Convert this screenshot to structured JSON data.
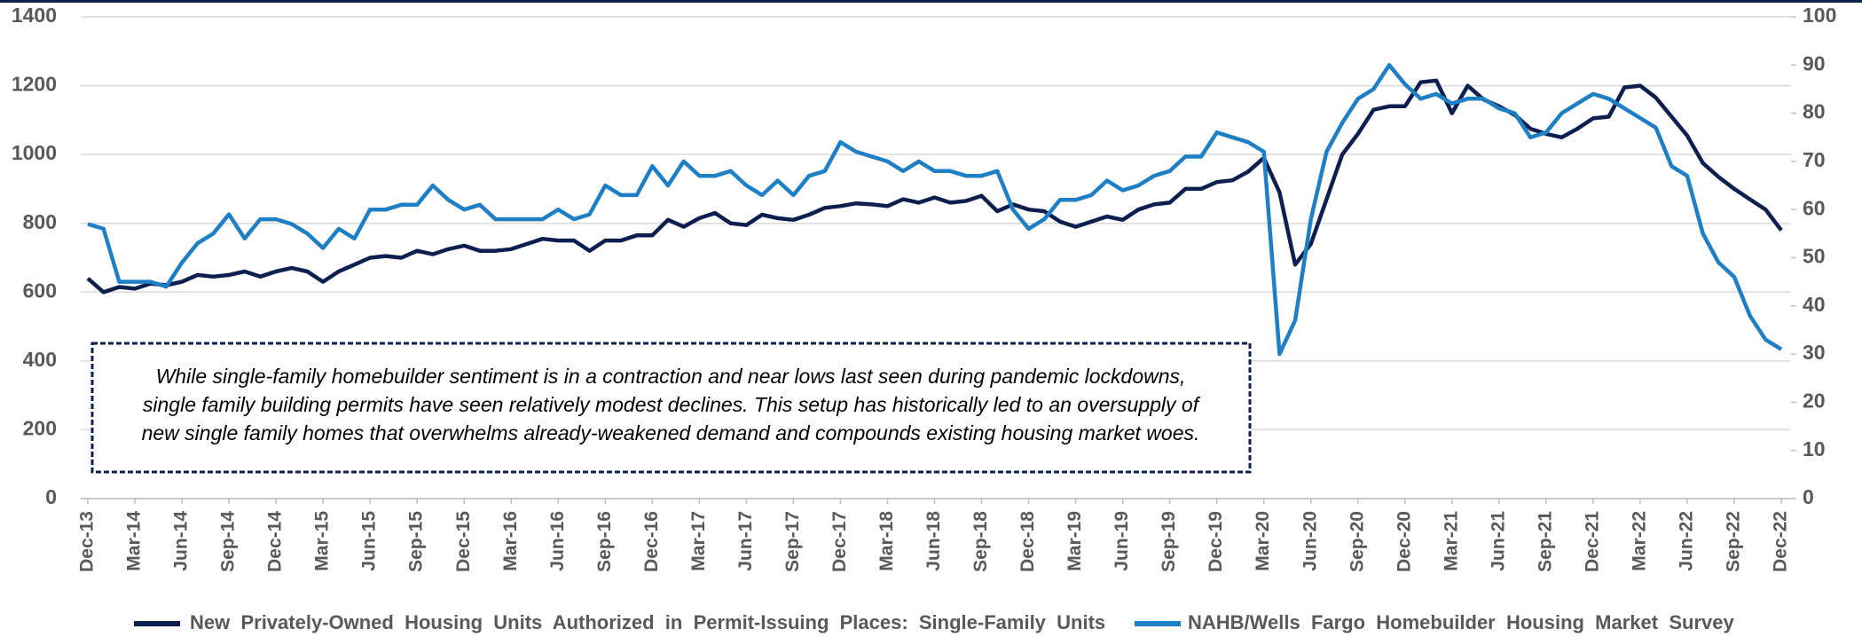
{
  "chart_data": {
    "type": "line",
    "categories": [
      "Dec-13",
      null,
      null,
      "Mar-14",
      null,
      null,
      "Jun-14",
      null,
      null,
      "Sep-14",
      null,
      null,
      "Dec-14",
      null,
      null,
      "Mar-15",
      null,
      null,
      "Jun-15",
      null,
      null,
      "Sep-15",
      null,
      null,
      "Dec-15",
      null,
      null,
      "Mar-16",
      null,
      null,
      "Jun-16",
      null,
      null,
      "Sep-16",
      null,
      null,
      "Dec-16",
      null,
      null,
      "Mar-17",
      null,
      null,
      "Jun-17",
      null,
      null,
      "Sep-17",
      null,
      null,
      "Dec-17",
      null,
      null,
      "Mar-18",
      null,
      null,
      "Jun-18",
      null,
      null,
      "Sep-18",
      null,
      null,
      "Dec-18",
      null,
      null,
      "Mar-19",
      null,
      null,
      "Jun-19",
      null,
      null,
      "Sep-19",
      null,
      null,
      "Dec-19",
      null,
      null,
      "Mar-20",
      null,
      null,
      "Jun-20",
      null,
      null,
      "Sep-20",
      null,
      null,
      "Dec-20",
      null,
      null,
      "Mar-21",
      null,
      null,
      "Jun-21",
      null,
      null,
      "Sep-21",
      null,
      null,
      "Dec-21",
      null,
      null,
      "Mar-22",
      null,
      null,
      "Jun-22",
      null,
      null,
      "Sep-22",
      null,
      null,
      "Dec-22"
    ],
    "series": [
      {
        "name": "New  Privately-Owned  Housing  Units  Authorized  in  Permit-Issuing  Places:  Single-Family  Units",
        "color": "#0d1f4f",
        "values": [
          640,
          600,
          615,
          610,
          625,
          620,
          630,
          650,
          645,
          650,
          660,
          645,
          660,
          670,
          660,
          630,
          660,
          680,
          700,
          705,
          700,
          720,
          710,
          725,
          735,
          720,
          720,
          725,
          740,
          755,
          750,
          750,
          720,
          750,
          750,
          765,
          765,
          810,
          790,
          815,
          830,
          800,
          795,
          825,
          815,
          810,
          825,
          845,
          850,
          858,
          855,
          850,
          870,
          860,
          875,
          860,
          865,
          880,
          835,
          855,
          840,
          835,
          805,
          790,
          805,
          820,
          810,
          840,
          855,
          860,
          900,
          900,
          920,
          925,
          950,
          990,
          890,
          680,
          740,
          870,
          1000,
          1060,
          1130,
          1140,
          1140,
          1210,
          1215,
          1120,
          1200,
          1160,
          1140,
          1115,
          1075,
          1060,
          1050,
          1075,
          1105,
          1110,
          1195,
          1200,
          1165,
          1110,
          1055,
          975,
          935,
          900,
          870,
          840,
          780
        ]
      },
      {
        "name": "NAHB/Wells  Fargo  Homebuilder  Housing  Market  Survey",
        "color": "#1f7fc4",
        "axis": "y2",
        "values": [
          57,
          56,
          45,
          45,
          45,
          44,
          49,
          53,
          55,
          59,
          54,
          58,
          58,
          57,
          55,
          52,
          56,
          54,
          60,
          60,
          61,
          61,
          65,
          62,
          60,
          61,
          58,
          58,
          58,
          58,
          60,
          58,
          59,
          65,
          63,
          63,
          69,
          65,
          70,
          67,
          67,
          68,
          65,
          63,
          66,
          63,
          67,
          68,
          74,
          72,
          71,
          70,
          68,
          70,
          68,
          68,
          67,
          67,
          68,
          60,
          56,
          58,
          62,
          62,
          63,
          66,
          64,
          65,
          67,
          68,
          71,
          71,
          76,
          75,
          74,
          72,
          30,
          37,
          58,
          72,
          78,
          83,
          85,
          90,
          86,
          83,
          84,
          82,
          83,
          83,
          81,
          80,
          75,
          76,
          80,
          82,
          84,
          83,
          81,
          79,
          77,
          69,
          67,
          55,
          49,
          46,
          38,
          33,
          31
        ]
      }
    ],
    "ylim": [
      0,
      1400
    ],
    "yticks": [
      0,
      200,
      400,
      600,
      800,
      1000,
      1200,
      1400
    ],
    "y2lim": [
      0,
      100
    ],
    "y2ticks": [
      0,
      10,
      20,
      30,
      40,
      50,
      60,
      70,
      80,
      90,
      100
    ],
    "grid": true,
    "legend": "bottom",
    "annotation": [
      "While single-family homebuilder sentiment is in a contraction and near lows last seen during pandemic lockdowns,",
      "single family building permits have seen relatively  modest declines. This setup has historically led to an oversupply of",
      "new single family homes that overwhelms already-weakened demand and compounds existing housing market woes."
    ]
  }
}
